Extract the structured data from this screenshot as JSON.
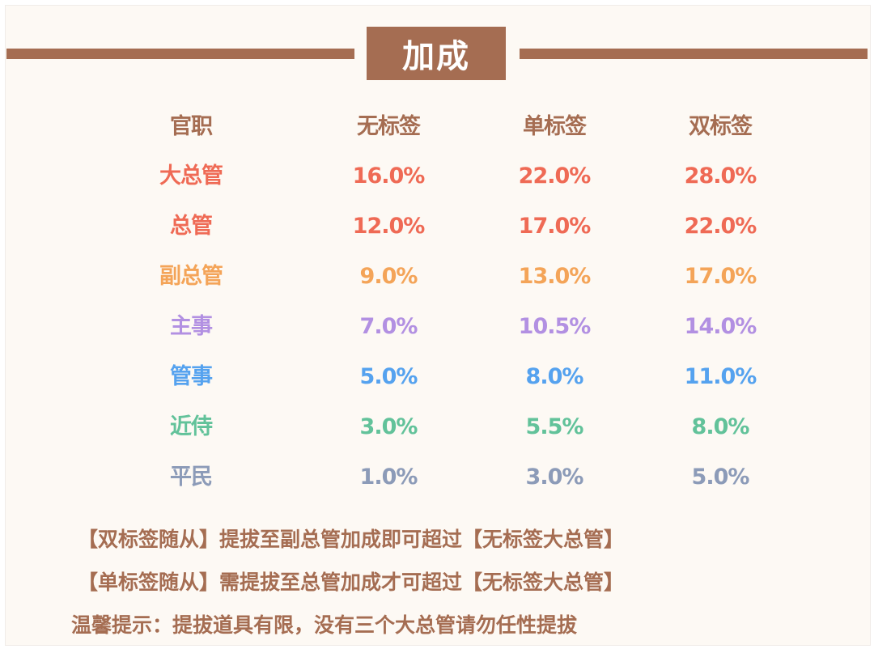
{
  "title": "加成",
  "colors": {
    "brand": "#a56d52",
    "background": "#fdf9f4"
  },
  "table": {
    "headers": [
      "官职",
      "无标签",
      "单标签",
      "双标签"
    ],
    "rows": [
      {
        "rank": "大总管",
        "values": [
          "16.0%",
          "22.0%",
          "28.0%"
        ],
        "color": "#ef6a55"
      },
      {
        "rank": "总管",
        "values": [
          "12.0%",
          "17.0%",
          "22.0%"
        ],
        "color": "#ef6a55"
      },
      {
        "rank": "副总管",
        "values": [
          "9.0%",
          "13.0%",
          "17.0%"
        ],
        "color": "#f4a458"
      },
      {
        "rank": "主事",
        "values": [
          "7.0%",
          "10.5%",
          "14.0%"
        ],
        "color": "#b290e2"
      },
      {
        "rank": "管事",
        "values": [
          "5.0%",
          "8.0%",
          "11.0%"
        ],
        "color": "#55a2ef"
      },
      {
        "rank": "近侍",
        "values": [
          "3.0%",
          "5.5%",
          "8.0%"
        ],
        "color": "#62c29a"
      },
      {
        "rank": "平民",
        "values": [
          "1.0%",
          "3.0%",
          "5.0%"
        ],
        "color": "#8c9bb8"
      }
    ]
  },
  "notes": [
    "【双标签随从】提拔至副总管加成即可超过【无标签大总管】",
    "【单标签随从】需提拔至总管加成才可超过【无标签大总管】",
    "温馨提示：提拔道具有限，没有三个大总管请勿任性提拔"
  ]
}
